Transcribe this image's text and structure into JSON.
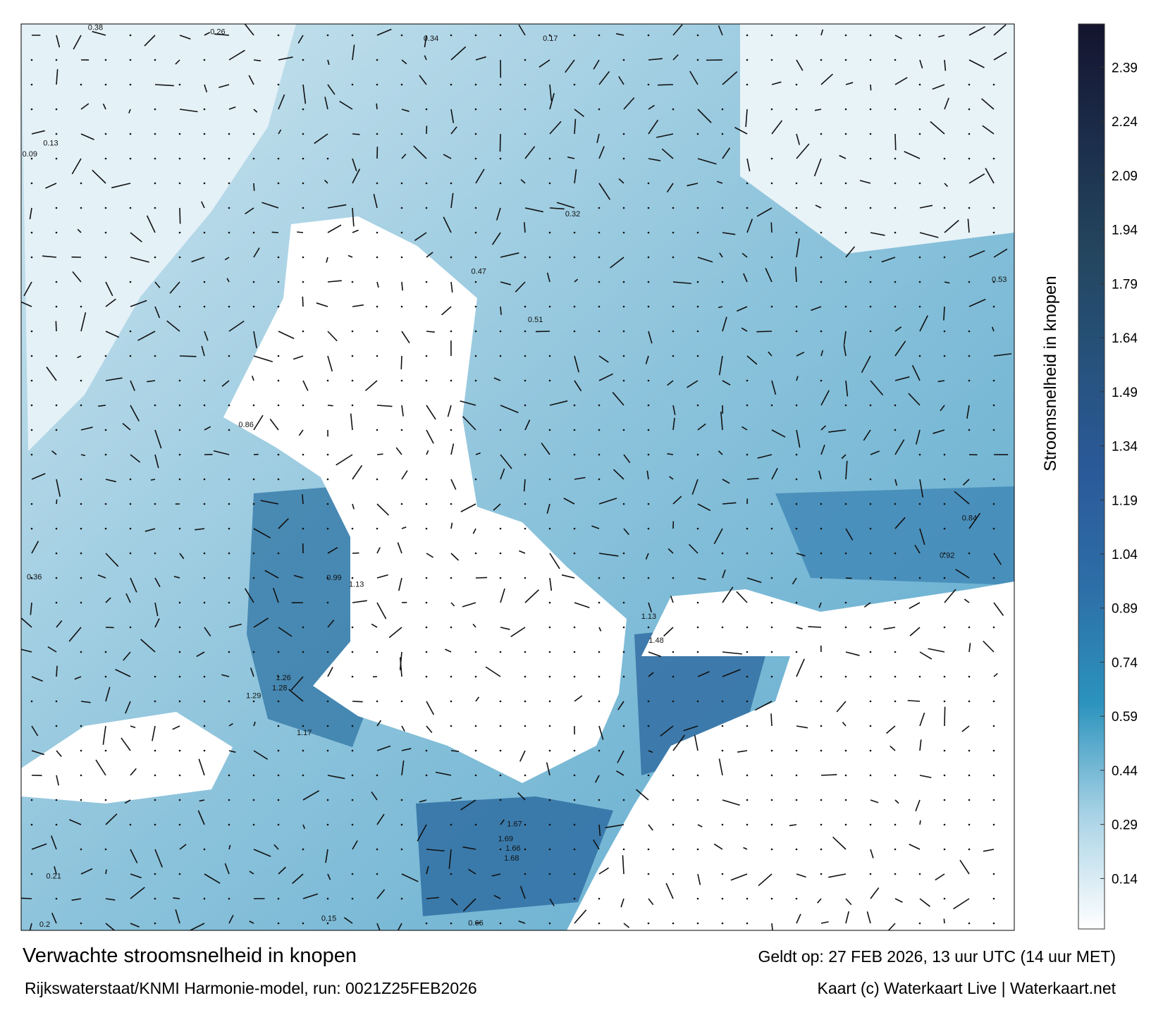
{
  "header": {
    "title": "Verwachte stroomsnelheid in knopen",
    "subtitle": "Rijkswaterstaat/KNMI Harmonie-model, run: 0021Z25FEB2026",
    "valid": "Geldt op: 27 FEB 2026, 13 uur UTC (14 uur MET)",
    "credit": "Kaart (c) Waterkaart Live | Waterkaart.net"
  },
  "colorbar": {
    "label": "Stroomsnelheid in knopen",
    "lim": [
      0,
      2.51
    ],
    "ticks": [
      0.14,
      0.29,
      0.44,
      0.59,
      0.74,
      0.89,
      1.04,
      1.19,
      1.34,
      1.49,
      1.64,
      1.79,
      1.94,
      2.09,
      2.24,
      2.39
    ],
    "colors": [
      "#ffffff",
      "#a9d3e6",
      "#2b93bd",
      "#2d6fa8",
      "#2b5a9b",
      "#26527c",
      "#24455e",
      "#1b2d4a",
      "#14142e"
    ]
  },
  "map": {
    "labels": [
      0.38,
      0.26,
      0.34,
      0.17,
      0.09,
      0.13,
      0.32,
      0.47,
      0.51,
      0.86,
      0.99,
      1.13,
      1.26,
      1.28,
      1.29,
      1.17,
      1.67,
      1.69,
      1.66,
      1.68,
      1.13,
      1.48,
      0.84,
      0.92,
      0.53,
      0.21,
      0.2,
      0.15,
      0.66,
      0.36
    ]
  }
}
